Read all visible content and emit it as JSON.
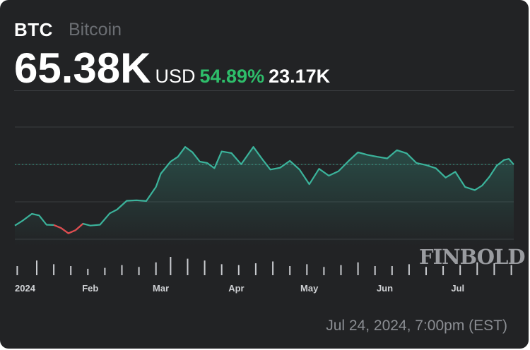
{
  "header": {
    "symbol": "BTC",
    "name": "Bitcoin",
    "price": "65.38K",
    "currency": "USD",
    "change": "54.89%",
    "volume": "23.17K"
  },
  "watermark": "FINBOLD",
  "timestamp": "Jul 24, 2024, 7:00pm (EST)",
  "colors": {
    "background": "#222325",
    "up_line": "#3bb39b",
    "down_line": "#e5484d",
    "change_text": "#2ebd6a",
    "volume_bars": "#c9cbcf",
    "grid": "#3a3c40"
  },
  "chart_data": {
    "type": "area",
    "x_tick_labels": [
      "2024",
      "Feb",
      "Mar",
      "Apr",
      "May",
      "Jun",
      "Jul"
    ],
    "x_ticks": [
      "2024-01-01",
      "2024-02-01",
      "2024-03-01",
      "2024-04-01",
      "2024-05-01",
      "2024-06-01",
      "2024-07-01"
    ],
    "x": [
      "2024-01-01",
      "2024-01-04",
      "2024-01-08",
      "2024-01-11",
      "2024-01-14",
      "2024-01-17",
      "2024-01-20",
      "2024-01-23",
      "2024-01-26",
      "2024-01-29",
      "2024-02-01",
      "2024-02-05",
      "2024-02-09",
      "2024-02-12",
      "2024-02-16",
      "2024-02-20",
      "2024-02-24",
      "2024-02-28",
      "2024-03-01",
      "2024-03-05",
      "2024-03-08",
      "2024-03-11",
      "2024-03-14",
      "2024-03-17",
      "2024-03-20",
      "2024-03-23",
      "2024-03-26",
      "2024-03-30",
      "2024-04-03",
      "2024-04-08",
      "2024-04-12",
      "2024-04-15",
      "2024-04-19",
      "2024-04-23",
      "2024-04-27",
      "2024-05-01",
      "2024-05-05",
      "2024-05-09",
      "2024-05-13",
      "2024-05-17",
      "2024-05-21",
      "2024-05-25",
      "2024-05-29",
      "2024-06-02",
      "2024-06-06",
      "2024-06-10",
      "2024-06-14",
      "2024-06-18",
      "2024-06-22",
      "2024-06-26",
      "2024-06-30",
      "2024-07-04",
      "2024-07-08",
      "2024-07-11",
      "2024-07-14",
      "2024-07-17",
      "2024-07-20",
      "2024-07-22",
      "2024-07-24"
    ],
    "series": [
      {
        "values": [
          42500,
          44200,
          46900,
          46300,
          42800,
          42700,
          41600,
          39600,
          40800,
          43200,
          42500,
          42800,
          47100,
          48500,
          51800,
          52000,
          51700,
          57000,
          62000,
          66500,
          68300,
          72000,
          70000,
          66500,
          66000,
          64000,
          70300,
          69700,
          65500,
          72000,
          67000,
          63500,
          64200,
          66800,
          63500,
          58000,
          63800,
          61200,
          62900,
          66600,
          70000,
          69000,
          68300,
          67700,
          70800,
          69600,
          66000,
          65200,
          64000,
          60500,
          62700,
          57000,
          55800,
          57500,
          60800,
          65000,
          67100,
          67500,
          65400
        ]
      }
    ],
    "volume": {
      "x": [
        "2024-01-02",
        "2024-01-10",
        "2024-01-17",
        "2024-01-24",
        "2024-01-31",
        "2024-02-07",
        "2024-02-14",
        "2024-02-21",
        "2024-02-28",
        "2024-03-05",
        "2024-03-12",
        "2024-03-19",
        "2024-03-26",
        "2024-04-02",
        "2024-04-09",
        "2024-04-16",
        "2024-04-23",
        "2024-04-30",
        "2024-05-07",
        "2024-05-14",
        "2024-05-21",
        "2024-05-28",
        "2024-06-04",
        "2024-06-11",
        "2024-06-18",
        "2024-06-25",
        "2024-07-02",
        "2024-07-09",
        "2024-07-16",
        "2024-07-23"
      ],
      "values": [
        0.5,
        0.8,
        0.6,
        0.5,
        0.35,
        0.4,
        0.55,
        0.45,
        0.7,
        1.0,
        0.9,
        0.8,
        0.6,
        0.55,
        0.65,
        0.75,
        0.5,
        0.6,
        0.45,
        0.55,
        0.7,
        0.5,
        0.5,
        0.6,
        0.45,
        0.5,
        0.55,
        0.7,
        0.65,
        0.55
      ]
    },
    "ylim": [
      35000,
      80000
    ],
    "previous_close": 65400,
    "down_segment_dates": [
      "2024-01-17",
      "2024-01-29"
    ],
    "grid": true
  }
}
